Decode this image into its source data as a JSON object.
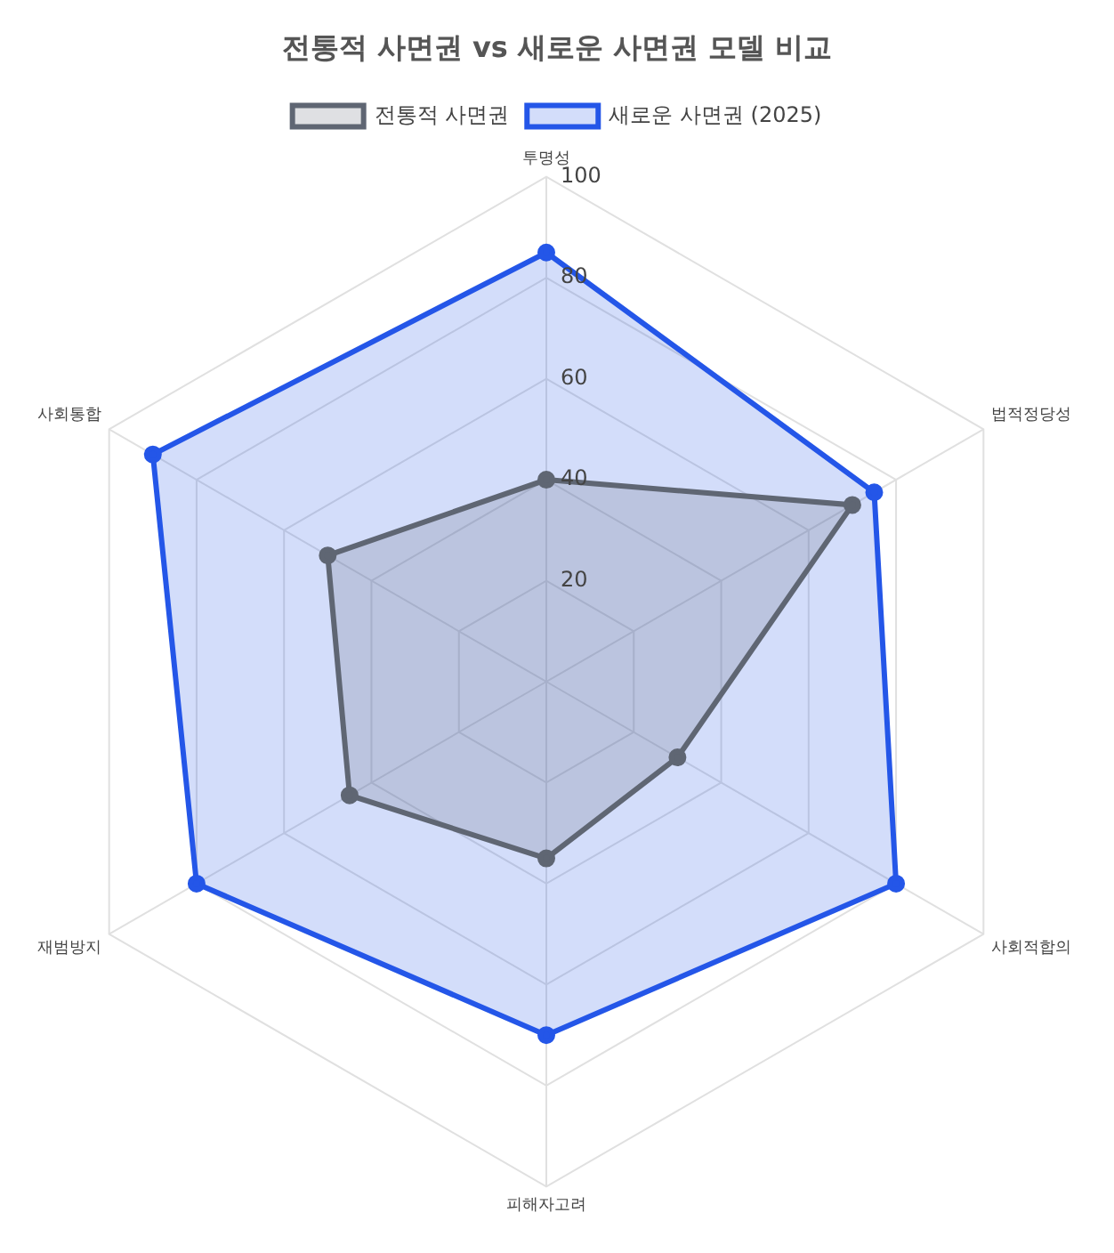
{
  "chart_data": {
    "type": "radar",
    "title": "전통적 사면권 vs 새로운 사면권 모델 비교",
    "categories": [
      "투명성",
      "법적정당성",
      "사회적합의",
      "피해자고려",
      "재범방지",
      "사회통합"
    ],
    "series": [
      {
        "name": "전통적 사면권",
        "color": "#5f6673",
        "values": [
          40,
          70,
          30,
          35,
          45,
          50
        ]
      },
      {
        "name": "새로운 사면권 (2025)",
        "color": "#2456e8",
        "values": [
          85,
          75,
          80,
          70,
          80,
          90
        ]
      }
    ],
    "ylim": [
      0,
      100
    ],
    "yticks": [
      20,
      40,
      60,
      80,
      100
    ],
    "grid": true,
    "legend": "top",
    "marker": "circle"
  }
}
